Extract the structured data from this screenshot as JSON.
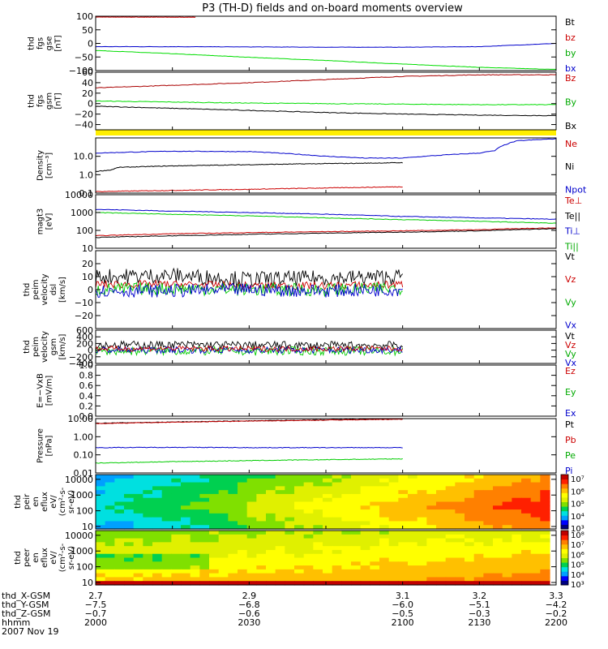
{
  "title": "P3 (TH-D) fields and on-board moments overview",
  "chart_data": [
    {
      "type": "line",
      "id": "fgs_gse",
      "ylabel": [
        "thd",
        "fgs",
        "gse",
        "[nT]"
      ],
      "ylim": [
        -100,
        100
      ],
      "ticks": [
        100,
        50,
        0,
        -50,
        -100
      ],
      "ticklabels": [
        "100",
        "50",
        "0",
        "−50",
        "−100"
      ],
      "legend": [
        "Bt",
        "bz",
        "by",
        "bx"
      ],
      "legend_colors": [
        "#000000",
        "#cc0000",
        "#00aa00",
        "#0000cc"
      ],
      "series": [
        {
          "name": "bz",
          "color": "#cc0000",
          "x": [
            2.7,
            2.9,
            3.1,
            3.3
          ],
          "y": [
            97,
            96,
            97,
            98
          ],
          "x_end": 2.83
        },
        {
          "name": "by",
          "color": "#00dd00",
          "x": [
            2.7,
            2.8,
            2.9,
            3.0,
            3.1,
            3.2,
            3.3
          ],
          "y": [
            -26,
            -38,
            -51,
            -63,
            -76,
            -88,
            -96
          ]
        },
        {
          "name": "bx",
          "color": "#0000cc",
          "x": [
            2.7,
            2.8,
            2.9,
            3.0,
            3.1,
            3.2,
            3.25,
            3.3
          ],
          "y": [
            -12,
            -12,
            -13,
            -14,
            -14,
            -12,
            -6,
            0
          ]
        }
      ]
    },
    {
      "type": "line",
      "id": "fgs_gsm",
      "ylabel": [
        "thd",
        "fgs",
        "gsm",
        "[nT]"
      ],
      "ylim": [
        -50,
        60
      ],
      "ticks": [
        60,
        40,
        20,
        0,
        -20,
        -40
      ],
      "ticklabels": [
        "60",
        "40",
        "20",
        "0",
        "−20",
        "−40"
      ],
      "legend": [
        "Bz",
        "By",
        "Bx"
      ],
      "legend_colors": [
        "#cc0000",
        "#00aa00",
        "#000000"
      ],
      "series": [
        {
          "name": "Bz",
          "color": "#aa0000",
          "x": [
            2.7,
            2.8,
            2.9,
            3.0,
            3.1,
            3.2,
            3.3
          ],
          "y": [
            30,
            35,
            40,
            46,
            52,
            55,
            55
          ]
        },
        {
          "name": "By",
          "color": "#00dd00",
          "x": [
            2.7,
            2.8,
            2.9,
            3.0,
            3.1,
            3.2,
            3.3
          ],
          "y": [
            5,
            3,
            1,
            0,
            -1,
            -2,
            -2
          ]
        },
        {
          "name": "Bx",
          "color": "#000000",
          "x": [
            2.7,
            2.8,
            2.9,
            3.0,
            3.1,
            3.2,
            3.3
          ],
          "y": [
            -5,
            -9,
            -13,
            -17,
            -20,
            -22,
            -23
          ]
        }
      ]
    },
    {
      "type": "line",
      "id": "density",
      "ylog": true,
      "ylabel": [
        "Density",
        "[cm⁻³]"
      ],
      "ylim": [
        0.1,
        100
      ],
      "ticks": [
        10,
        1,
        0.1
      ],
      "ticklabels": [
        "10.0",
        "1.0",
        "0.1"
      ],
      "legend": [
        "Ne",
        "Ni",
        "Npot"
      ],
      "legend_colors": [
        "#cc0000",
        "#000000",
        "#0000cc"
      ],
      "series": [
        {
          "name": "Npot",
          "color": "#0000cc",
          "x": [
            2.7,
            2.75,
            2.8,
            2.9,
            3.0,
            3.05,
            3.1,
            3.2,
            3.22,
            3.25,
            3.3
          ],
          "y": [
            15,
            17,
            19,
            18,
            10,
            8,
            8,
            15,
            20,
            70,
            90
          ]
        },
        {
          "name": "Ni",
          "color": "#000000",
          "x": [
            2.7,
            2.72,
            2.73,
            2.8,
            2.9,
            3.0,
            3.05,
            3.1
          ],
          "y": [
            1.5,
            1.8,
            2.5,
            3,
            3.5,
            4,
            4.2,
            4.5
          ]
        },
        {
          "name": "Ne",
          "color": "#cc0000",
          "x": [
            2.7,
            2.8,
            2.9,
            3.0,
            3.1
          ],
          "y": [
            0.12,
            0.14,
            0.16,
            0.19,
            0.22
          ]
        }
      ]
    },
    {
      "type": "line",
      "id": "temperature",
      "ylog": true,
      "ylabel": [
        "magt3",
        "[eV]"
      ],
      "ylim": [
        10,
        10000
      ],
      "ticks": [
        10000,
        1000,
        100,
        10
      ],
      "ticklabels": [
        "10000",
        "1000",
        "100",
        "10"
      ],
      "legend": [
        "Te⊥",
        "Te||",
        "Ti⊥",
        "Ti||"
      ],
      "legend_colors": [
        "#cc0000",
        "#000000",
        "#0000cc",
        "#00aa00"
      ],
      "series": [
        {
          "name": "Ti⊥",
          "color": "#0000cc",
          "x": [
            2.7,
            2.8,
            2.9,
            3.0,
            3.1,
            3.2,
            3.3
          ],
          "y": [
            1500,
            1200,
            1000,
            800,
            600,
            500,
            420
          ]
        },
        {
          "name": "Ti||",
          "color": "#00cc00",
          "x": [
            2.7,
            2.8,
            2.9,
            3.0,
            3.1,
            3.2,
            3.3
          ],
          "y": [
            1000,
            800,
            650,
            500,
            400,
            320,
            250
          ]
        },
        {
          "name": "Te⊥",
          "color": "#cc0000",
          "x": [
            2.7,
            2.8,
            2.9,
            3.0,
            3.1,
            3.2,
            3.3
          ],
          "y": [
            50,
            65,
            75,
            85,
            95,
            110,
            140
          ]
        },
        {
          "name": "Te||",
          "color": "#000000",
          "x": [
            2.7,
            2.8,
            2.9,
            3.0,
            3.1,
            3.2,
            3.3
          ],
          "y": [
            40,
            50,
            60,
            70,
            80,
            95,
            125
          ]
        }
      ]
    },
    {
      "type": "line",
      "id": "velocity_dsl",
      "ylabel": [
        "thd",
        "peim",
        "velocity",
        "dsl",
        "[km/s]"
      ],
      "ylim": [
        -30,
        30
      ],
      "ticks": [
        20,
        10,
        0,
        -10,
        -20
      ],
      "ticklabels": [
        "20",
        "10",
        "0",
        "−10",
        "−20"
      ],
      "legend": [
        "Vt",
        "Vz",
        "Vy",
        "Vx"
      ],
      "legend_colors": [
        "#000000",
        "#cc0000",
        "#00aa00",
        "#0000cc"
      ],
      "series": [
        {
          "name": "Vt",
          "color": "#000000",
          "x": [
            2.7,
            2.8,
            2.9,
            3.0,
            3.1
          ],
          "y": [
            10,
            11,
            8,
            9,
            10
          ],
          "noise": 6
        },
        {
          "name": "Vz",
          "color": "#cc0000",
          "x": [
            2.7,
            2.8,
            2.9,
            3.0,
            3.1
          ],
          "y": [
            4,
            4,
            3,
            3,
            4
          ],
          "noise": 3
        },
        {
          "name": "Vy",
          "color": "#00cc00",
          "x": [
            2.7,
            2.8,
            2.9,
            3.0,
            3.1
          ],
          "y": [
            0,
            1,
            0,
            0,
            1
          ],
          "noise": 5
        },
        {
          "name": "Vx",
          "color": "#0000cc",
          "x": [
            2.7,
            2.8,
            2.9,
            3.0,
            3.1
          ],
          "y": [
            -1,
            -1,
            0,
            -1,
            0
          ],
          "noise": 5
        }
      ]
    },
    {
      "type": "line",
      "id": "velocity_gsm",
      "ylabel": [
        "thd",
        "peim",
        "velocity",
        "gsm",
        "[km/s]"
      ],
      "ylim": [
        -400,
        600
      ],
      "ticks": [
        600,
        400,
        200,
        0,
        -200,
        -400
      ],
      "ticklabels": [
        "600",
        "400",
        "200",
        "0",
        "−200",
        "−400"
      ],
      "legend": [
        "Vt",
        "Vz",
        "Vy",
        "Vx"
      ],
      "legend_colors": [
        "#000000",
        "#cc0000",
        "#00aa00",
        "#0000cc"
      ],
      "series": [
        {
          "name": "Vt",
          "color": "#000000",
          "x": [
            2.7,
            2.8,
            2.9,
            3.0,
            3.1
          ],
          "y": [
            150,
            160,
            150,
            140,
            150
          ],
          "noise": 120
        },
        {
          "name": "Vy",
          "color": "#00cc00",
          "x": [
            2.7,
            2.8,
            2.9,
            3.0,
            3.1
          ],
          "y": [
            -30,
            -20,
            -30,
            -20,
            -30
          ],
          "noise": 130
        },
        {
          "name": "Vx",
          "color": "#0000cc",
          "x": [
            2.7,
            2.8,
            2.9,
            3.0,
            3.1
          ],
          "y": [
            0,
            10,
            0,
            0,
            10
          ],
          "noise": 100
        },
        {
          "name": "Vz",
          "color": "#cc0000",
          "x": [
            2.7,
            2.8,
            2.9,
            3.0,
            3.1
          ],
          "y": [
            40,
            50,
            40,
            40,
            50
          ],
          "noise": 80
        }
      ]
    },
    {
      "type": "line",
      "id": "efield",
      "ylabel": [
        "E=−VxB",
        "[mV/m]"
      ],
      "ylim": [
        0,
        1
      ],
      "ticks": [
        1,
        0.8,
        0.6,
        0.4,
        0.2,
        0
      ],
      "ticklabels": [
        "1.0",
        "0.8",
        "0.6",
        "0.4",
        "0.2",
        "0.0"
      ],
      "legend": [
        "Ez",
        "Ey",
        "Ex"
      ],
      "legend_colors": [
        "#cc0000",
        "#00aa00",
        "#0000cc"
      ],
      "series": []
    },
    {
      "type": "line",
      "id": "pressure",
      "ylog": true,
      "ylabel": [
        "Pressure",
        "[nPa]"
      ],
      "ylim": [
        0.01,
        10
      ],
      "ticks": [
        10,
        1,
        0.1,
        0.01
      ],
      "ticklabels": [
        "10.00",
        "1.00",
        "0.10",
        "0.01"
      ],
      "legend": [
        "Pt",
        "Pb",
        "Pe",
        "Pi"
      ],
      "legend_colors": [
        "#000000",
        "#cc0000",
        "#00aa00",
        "#0000cc"
      ],
      "series": [
        {
          "name": "Pt",
          "color": "#000000",
          "x": [
            2.7,
            2.8,
            2.9,
            3.0,
            3.1
          ],
          "y": [
            5.5,
            6.5,
            7.5,
            8.5,
            9.5
          ]
        },
        {
          "name": "Pb",
          "color": "#cc0000",
          "x": [
            2.7,
            2.8,
            2.9,
            3.0,
            3.1
          ],
          "y": [
            5.3,
            6.3,
            7.3,
            8.3,
            9.3
          ]
        },
        {
          "name": "Pi",
          "color": "#0000cc",
          "x": [
            2.7,
            2.8,
            2.9,
            3.0,
            3.1
          ],
          "y": [
            0.25,
            0.26,
            0.25,
            0.25,
            0.25
          ]
        },
        {
          "name": "Pe",
          "color": "#00cc00",
          "x": [
            2.7,
            2.8,
            2.9,
            3.0,
            3.1
          ],
          "y": [
            0.035,
            0.042,
            0.048,
            0.054,
            0.06
          ]
        }
      ]
    },
    {
      "type": "heatmap",
      "id": "peir_spectrogram",
      "ylog": true,
      "ylabel": [
        "thd",
        "peir",
        "en",
        "eflux",
        "eV/",
        "(cm²-s-",
        "sr-eV)"
      ],
      "ylim": [
        7,
        20000
      ],
      "ticks": [
        10000,
        1000,
        100,
        10
      ],
      "ticklabels": [
        "10000",
        "1000",
        "100",
        "10"
      ],
      "colorbar_ticklabels": [
        "10⁷",
        "10⁶",
        "10⁵",
        "10⁴",
        "10³"
      ],
      "description_values": {
        "rows": 12,
        "cols": 40,
        "range": [
          3,
          7.5
        ]
      }
    },
    {
      "type": "heatmap",
      "id": "peer_spectrogram",
      "ylog": true,
      "ylabel": [
        "thd",
        "peer",
        "en",
        "eflux",
        "eV/",
        "(cm²-s-",
        "sr-eV)"
      ],
      "ylim": [
        7,
        20000
      ],
      "ticks": [
        10000,
        1000,
        100,
        10
      ],
      "ticklabels": [
        "10000",
        "1000",
        "100",
        "10"
      ],
      "colorbar_ticklabels": [
        "10⁸",
        "10⁷",
        "10⁶",
        "10⁵",
        "10⁴",
        "10³"
      ]
    }
  ],
  "xaxis": {
    "xlim": [
      2.7,
      3.3
    ],
    "rows": [
      {
        "name": "thd_X-GSM",
        "values": [
          "2.7",
          "2.9",
          "3.1",
          "3.2",
          "3.3"
        ]
      },
      {
        "name": "thd_Y-GSM",
        "values": [
          "−7.5",
          "−6.8",
          "−6.0",
          "−5.1",
          "−4.2"
        ]
      },
      {
        "name": "thd_Z-GSM",
        "values": [
          "−0.7",
          "−0.6",
          "−0.5",
          "−0.3",
          "−0.2"
        ]
      },
      {
        "name": "hhmm",
        "values": [
          "2000",
          "2030",
          "2100",
          "2130",
          "2200"
        ]
      }
    ],
    "date": "2007 Nov 19"
  },
  "colors": {
    "status_bar": "#ffee00"
  }
}
